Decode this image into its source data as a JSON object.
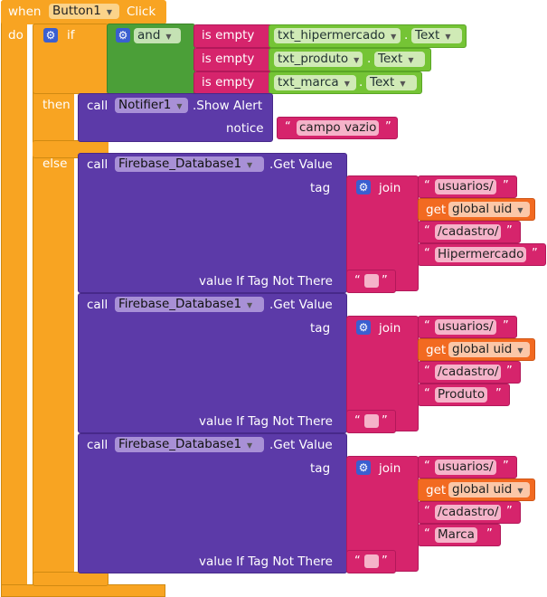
{
  "event": {
    "when": "when",
    "component": "Button1",
    "event": "Click",
    "do": "do"
  },
  "if_block": {
    "if": "if",
    "then": "then",
    "else": "else"
  },
  "and": "and",
  "is_empty": "is empty",
  "conditions": [
    {
      "component": "txt_hipermercado",
      "property": "Text"
    },
    {
      "component": "txt_produto",
      "property": "Text"
    },
    {
      "component": "txt_marca",
      "property": "Text"
    }
  ],
  "call": "call",
  "notifier": {
    "component": "Notifier1",
    "method": ".Show Alert",
    "param": "notice",
    "value": "campo vazio"
  },
  "firebase": {
    "component": "Firebase_Database1",
    "method": ".Get Value",
    "tag": "tag",
    "join": "join",
    "get": "get",
    "global_uid": "global uid",
    "value_if": "value If Tag Not There"
  },
  "calls": [
    {
      "usuarios": "usuarios/",
      "cadastro": "/cadastro/",
      "item": "Hipermercado"
    },
    {
      "usuarios": "usuarios/",
      "cadastro": "/cadastro/",
      "item": "Produto"
    },
    {
      "usuarios": "usuarios/",
      "cadastro": "/cadastro/",
      "item": "Marca"
    }
  ],
  "colors": {
    "event": "#f8a422",
    "logic": "#4b9f38",
    "text": "#d6246c",
    "procedure": "#5c3aa8",
    "component": "#75c435",
    "variable": "#f26a21"
  }
}
